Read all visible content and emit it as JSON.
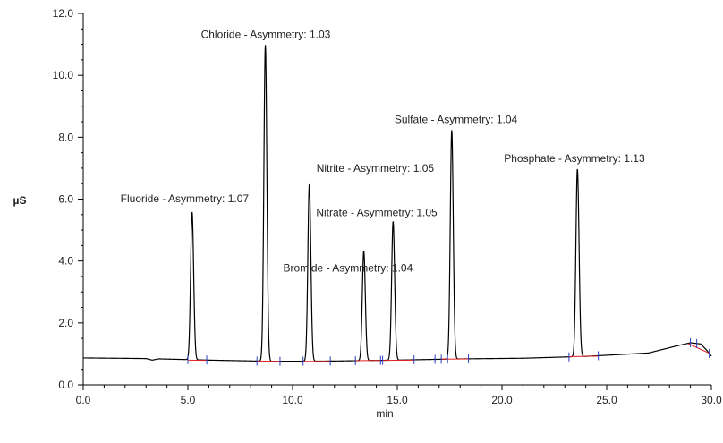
{
  "chart_data": {
    "type": "line",
    "title": "",
    "xlabel": "min",
    "ylabel": "µS",
    "xlim": [
      0,
      30
    ],
    "ylim": [
      0,
      12
    ],
    "xticks": [
      "0.0",
      "5.0",
      "10.0",
      "15.0",
      "20.0",
      "25.0",
      "30.0"
    ],
    "yticks": [
      "0.0",
      "2.0",
      "4.0",
      "6.0",
      "8.0",
      "10.0",
      "12.0"
    ],
    "grid": false,
    "colors": {
      "trace": "#000000",
      "baseline": "#e02020",
      "markers": "#2a3dbf"
    },
    "peaks": [
      {
        "name": "Fluoride",
        "label": "Fluoride - Asymmetry: 1.07",
        "rt": 5.2,
        "height": 5.58,
        "asymmetry": 1.07
      },
      {
        "name": "Chloride",
        "label": "Chloride - Asymmetry: 1.03",
        "rt": 8.7,
        "height": 10.98,
        "asymmetry": 1.03
      },
      {
        "name": "Nitrite",
        "label": "Nitrite - Asymmetry: 1.05",
        "rt": 10.8,
        "height": 6.48,
        "asymmetry": 1.05
      },
      {
        "name": "Bromide",
        "label": "Bromide - Asymmetry: 1.04",
        "rt": 13.4,
        "height": 4.32,
        "asymmetry": 1.04
      },
      {
        "name": "Nitrate",
        "label": "Nitrate - Asymmetry: 1.05",
        "rt": 14.8,
        "height": 5.28,
        "asymmetry": 1.05
      },
      {
        "name": "Sulfate",
        "label": "Sulfate - Asymmetry: 1.04",
        "rt": 17.6,
        "height": 8.23,
        "asymmetry": 1.04
      },
      {
        "name": "Phosphate",
        "label": "Phosphate - Asymmetry: 1.13",
        "rt": 23.6,
        "height": 6.97,
        "asymmetry": 1.13
      }
    ],
    "baseline": [
      [
        0,
        0.87
      ],
      [
        3.0,
        0.85
      ],
      [
        3.3,
        0.8
      ],
      [
        3.6,
        0.84
      ],
      [
        6.0,
        0.8
      ],
      [
        9.0,
        0.76
      ],
      [
        12.0,
        0.77
      ],
      [
        15.0,
        0.8
      ],
      [
        18.0,
        0.84
      ],
      [
        21.0,
        0.86
      ],
      [
        24.0,
        0.92
      ],
      [
        27.0,
        1.03
      ],
      [
        28.3,
        1.25
      ],
      [
        29.0,
        1.36
      ],
      [
        29.5,
        1.32
      ],
      [
        29.8,
        1.1
      ],
      [
        30.0,
        0.93
      ]
    ],
    "integration_baselines": [
      [
        5.0,
        0.8,
        5.9,
        0.79
      ],
      [
        8.3,
        0.77,
        9.4,
        0.76
      ],
      [
        10.5,
        0.76,
        11.8,
        0.76
      ],
      [
        13.0,
        0.78,
        14.2,
        0.79
      ],
      [
        14.3,
        0.79,
        15.8,
        0.8
      ],
      [
        17.1,
        0.83,
        18.4,
        0.84
      ],
      [
        23.2,
        0.91,
        24.6,
        0.93
      ],
      [
        28.9,
        1.33,
        29.9,
        1.02
      ]
    ],
    "event_markers": [
      5.0,
      5.9,
      8.3,
      9.4,
      10.5,
      11.8,
      13.0,
      14.2,
      14.3,
      15.8,
      16.8,
      17.1,
      17.4,
      18.4,
      23.2,
      24.6,
      29.0,
      29.3,
      29.9
    ]
  }
}
